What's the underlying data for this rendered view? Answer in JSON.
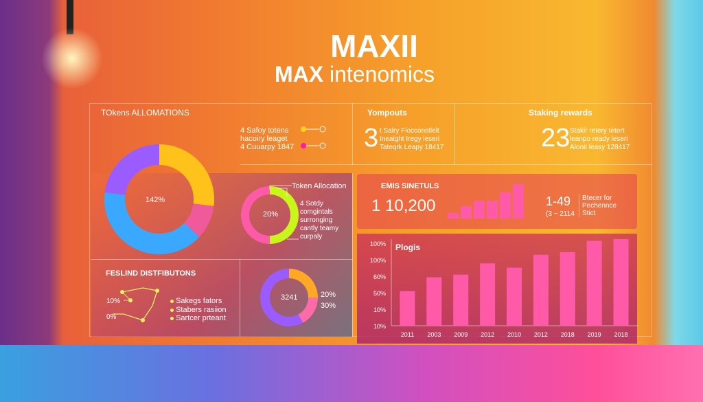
{
  "header": {
    "title": "MAXII",
    "subtitle_bold": "MAX",
    "subtitle_rest": "intenomics"
  },
  "tokens": {
    "title": "TOkens ALLOMATIONS",
    "legend": [
      "4 Safoy totens",
      "hacoiry leaget",
      "4 Cuuarpy 1847"
    ],
    "legend_colors": [
      "#ffd21a",
      "#ff1aa8"
    ],
    "donut_label": "142%",
    "donut_segments": [
      {
        "color": "#ffc21a",
        "value": 27
      },
      {
        "color": "#f05a9a",
        "value": 10
      },
      {
        "color": "#3aa8ff",
        "value": 40
      },
      {
        "color": "#9a5cff",
        "value": 23
      }
    ]
  },
  "yompouts": {
    "title": "Yompouts",
    "number": "3",
    "lines": [
      "t Salry Fiocconstlelt",
      "Inealght Iregy leseri",
      "Tateqrk Leapy 18417"
    ]
  },
  "staking": {
    "title": "Staking rewards",
    "number": "23",
    "lines": [
      "Stakir retery tetert",
      "leanpo ready leseri",
      "Alonit leasy 128417"
    ]
  },
  "allocation": {
    "title": "Token Allocation",
    "center": "20%",
    "lines": [
      "4 Sotdy",
      "comgintals",
      "surronging",
      "cantly teamy",
      "curpaly"
    ],
    "segments": [
      {
        "color": "#c8f51a",
        "value": 50
      },
      {
        "color": "#ff5aa8",
        "value": 50
      }
    ]
  },
  "distributions": {
    "title": "FESLIND DISTFIBUTONS",
    "labels": [
      "10%",
      "0%"
    ],
    "legend": [
      "Sakegs fators",
      "Stabers rasiion",
      "Sartcer prteant"
    ],
    "donut_center": "3241",
    "donut_labels": [
      "20%",
      "30%"
    ],
    "segments": [
      {
        "color": "#ffa826",
        "value": 25
      },
      {
        "color": "#ff6aa8",
        "value": 17
      },
      {
        "color": "#9a5cff",
        "value": 58
      }
    ]
  },
  "emis": {
    "title": "EMIS SINETULS",
    "value": "1 10,200",
    "mini_bars": [
      16,
      36,
      52,
      52,
      76,
      100
    ],
    "stat": "1-49",
    "stat_sub": "(3 ~ 2114",
    "side": [
      "Btecer for",
      "Pechennce",
      "Stict"
    ]
  },
  "chart_data": {
    "type": "bar",
    "title": "Plogis",
    "categories": [
      "2011",
      "2003",
      "2009",
      "2012",
      "2010",
      "2012",
      "2018",
      "2019",
      "2018"
    ],
    "values": [
      40,
      56,
      59,
      72,
      67,
      82,
      85,
      98,
      100
    ],
    "y_tick_labels": [
      "100%",
      "100%",
      "60%",
      "50%",
      "10%",
      "10%"
    ],
    "color": "#ff5aa8",
    "grid": false
  }
}
